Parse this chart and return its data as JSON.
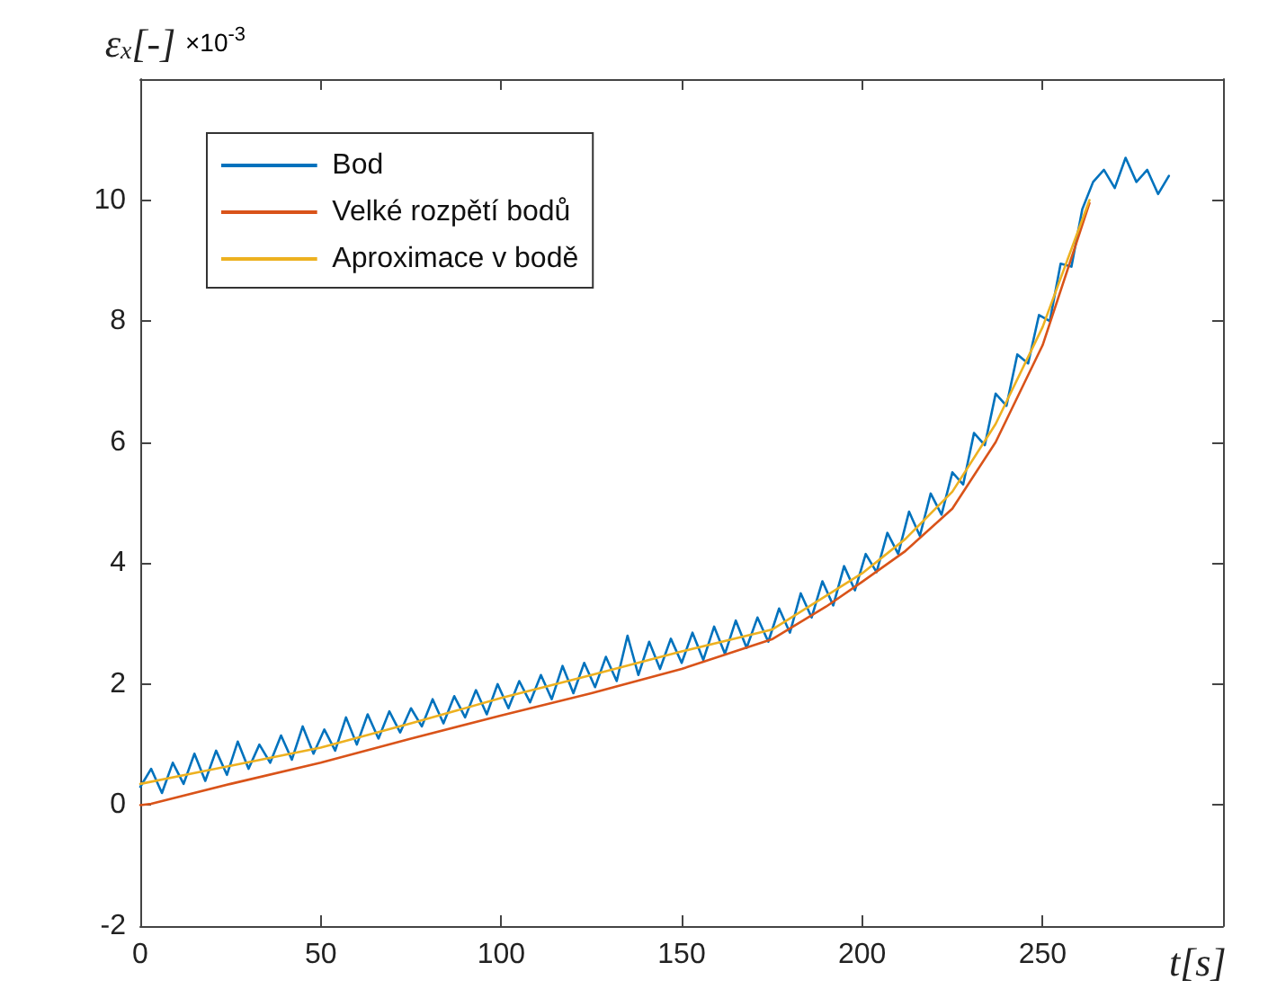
{
  "chart_data": {
    "type": "line",
    "xlabel": "t[s]",
    "ylabel": "ε$_{x}$[-]",
    "annotations": [
      "×10$^{-3}$"
    ],
    "xlim": [
      0,
      300
    ],
    "xticks": [
      0,
      50,
      100,
      150,
      200,
      250,
      {
        "value": 300,
        "label": null
      }
    ],
    "ylim": [
      -2,
      12
    ],
    "yticks": [
      -2,
      0,
      2,
      4,
      6,
      8,
      10,
      {
        "value": 12,
        "label": null
      }
    ],
    "grid": false,
    "legend": "top left",
    "marker": "none",
    "line_style": "solid",
    "series": [
      {
        "name": "Bod",
        "color": "#0072bd",
        "x": [
          0,
          3,
          6,
          9,
          12,
          15,
          18,
          21,
          24,
          27,
          30,
          33,
          36,
          39,
          42,
          45,
          48,
          51,
          54,
          57,
          60,
          63,
          66,
          69,
          72,
          75,
          78,
          81,
          84,
          87,
          90,
          93,
          96,
          99,
          102,
          105,
          108,
          111,
          114,
          117,
          120,
          123,
          126,
          129,
          132,
          135,
          138,
          141,
          144,
          147,
          150,
          153,
          156,
          159,
          162,
          165,
          168,
          171,
          174,
          177,
          180,
          183,
          186,
          189,
          192,
          195,
          198,
          201,
          204,
          207,
          210,
          213,
          216,
          219,
          222,
          225,
          228,
          231,
          234,
          237,
          240,
          243,
          246,
          249,
          252,
          255,
          258,
          261,
          264,
          267,
          270,
          273,
          276,
          279,
          282,
          285
        ],
        "values": [
          0.3,
          0.6,
          0.2,
          0.7,
          0.35,
          0.85,
          0.4,
          0.9,
          0.5,
          1.05,
          0.6,
          1.0,
          0.7,
          1.15,
          0.75,
          1.3,
          0.85,
          1.25,
          0.9,
          1.45,
          1.0,
          1.5,
          1.1,
          1.55,
          1.2,
          1.6,
          1.3,
          1.75,
          1.35,
          1.8,
          1.45,
          1.9,
          1.5,
          2.0,
          1.6,
          2.05,
          1.7,
          2.15,
          1.75,
          2.3,
          1.85,
          2.35,
          1.95,
          2.45,
          2.05,
          2.8,
          2.15,
          2.7,
          2.25,
          2.75,
          2.35,
          2.85,
          2.4,
          2.95,
          2.5,
          3.05,
          2.6,
          3.1,
          2.7,
          3.25,
          2.85,
          3.5,
          3.1,
          3.7,
          3.3,
          3.95,
          3.55,
          4.15,
          3.85,
          4.5,
          4.15,
          4.85,
          4.45,
          5.15,
          4.8,
          5.5,
          5.3,
          6.15,
          5.95,
          6.8,
          6.6,
          7.45,
          7.3,
          8.1,
          8.0,
          8.95,
          8.9,
          9.85,
          10.3,
          10.5,
          10.2,
          10.7,
          10.3,
          10.5,
          10.1,
          10.4
        ]
      },
      {
        "name": "Velké rozpětí bodů",
        "color": "#d95319",
        "x": [
          0,
          3,
          25,
          50,
          75,
          100,
          125,
          150,
          175,
          190,
          200,
          212,
          225,
          237,
          250,
          263
        ],
        "values": [
          0,
          0.02,
          0.35,
          0.7,
          1.1,
          1.48,
          1.85,
          2.25,
          2.74,
          3.28,
          3.69,
          4.2,
          4.9,
          6.0,
          7.6,
          9.95
        ]
      },
      {
        "name": "Aproximace v bodě",
        "color": "#edb120",
        "x": [
          0,
          25,
          50,
          75,
          100,
          125,
          150,
          175,
          200,
          212,
          225,
          237,
          250,
          263
        ],
        "values": [
          0.35,
          0.65,
          0.95,
          1.35,
          1.77,
          2.15,
          2.54,
          2.9,
          3.83,
          4.4,
          5.18,
          6.3,
          7.9,
          10.0
        ]
      }
    ]
  }
}
